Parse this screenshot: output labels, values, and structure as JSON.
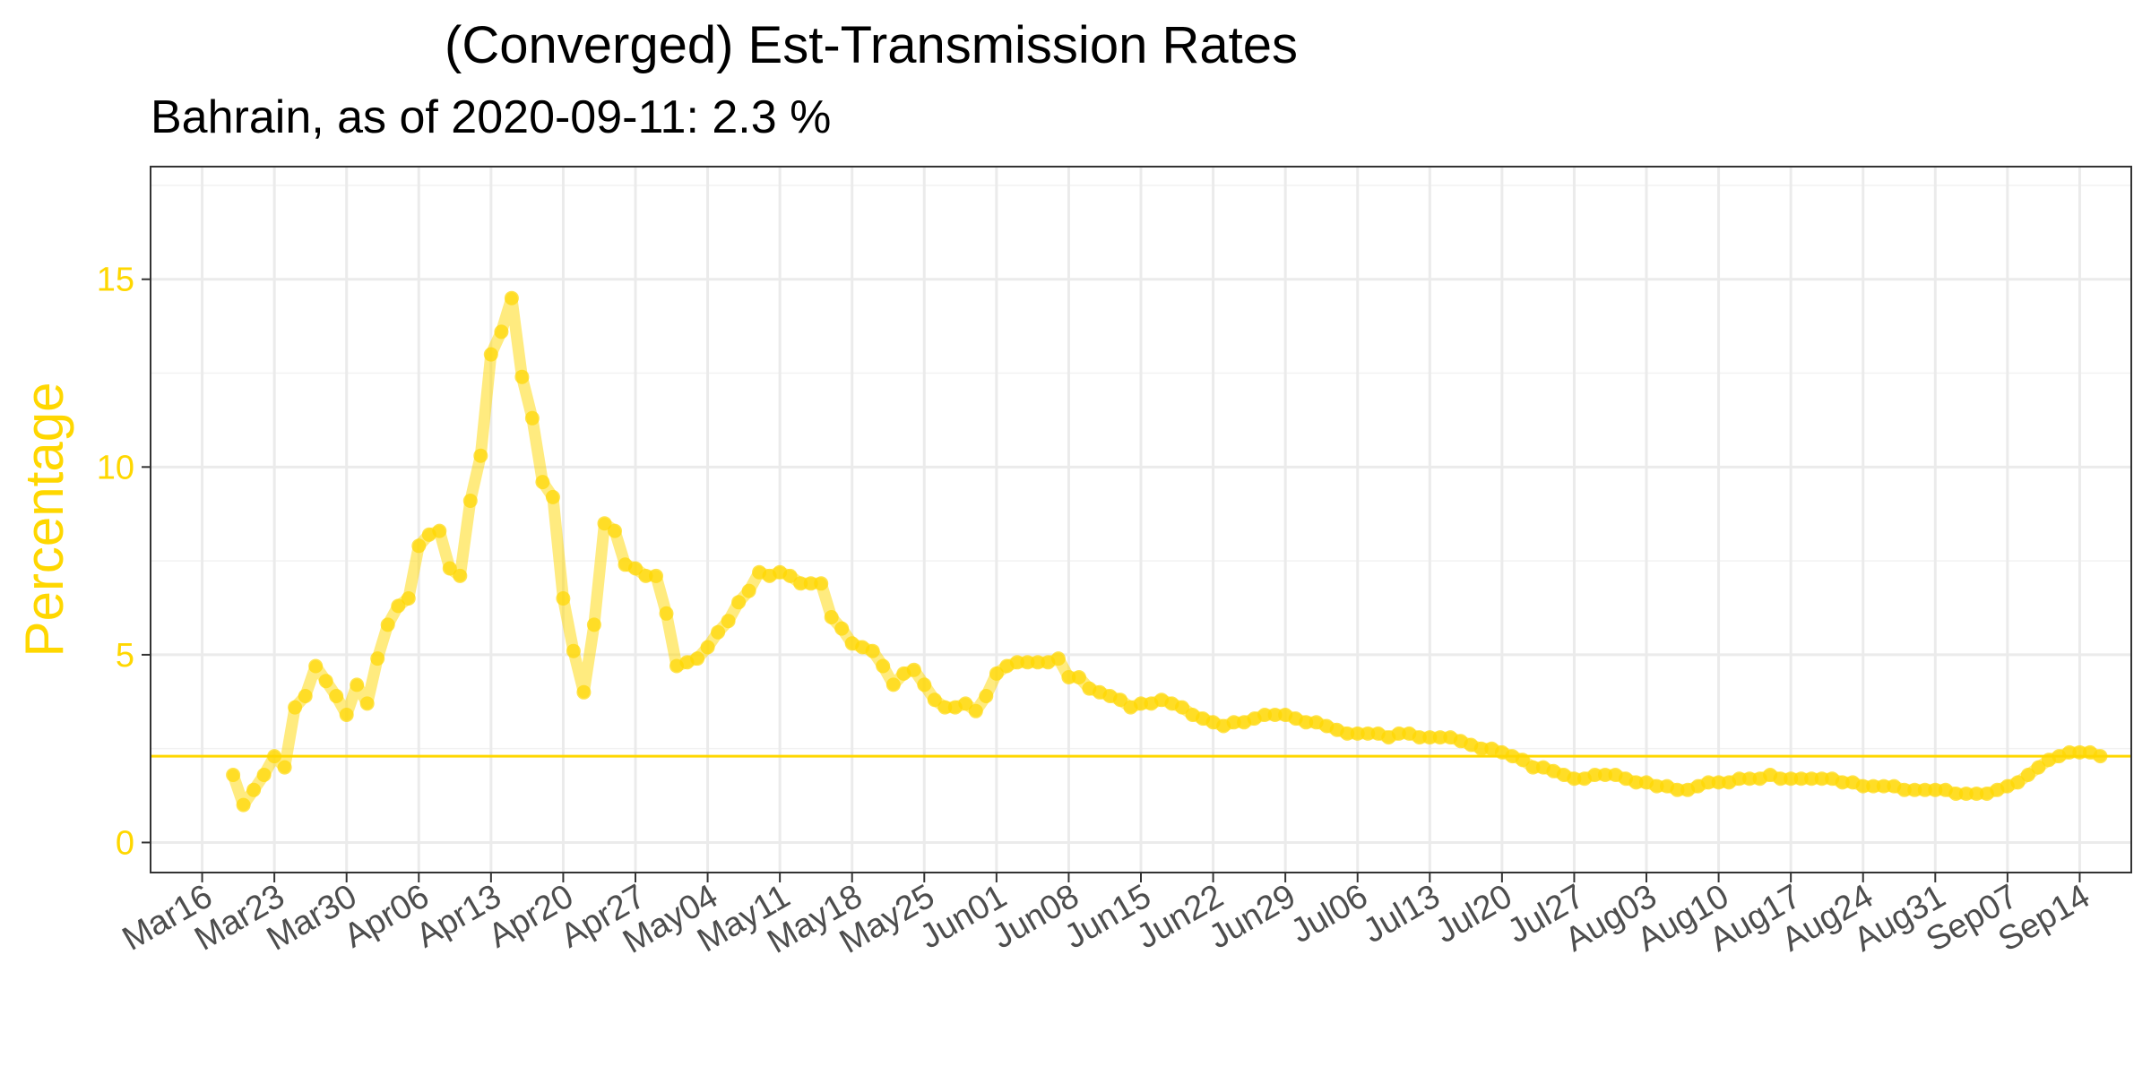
{
  "chart_data": {
    "type": "line",
    "title": "(Converged) Est-Transmission Rates",
    "subtitle": "Bahrain, as of 2020-09-11:  2.3 %",
    "ylabel": "Percentage",
    "xlabel": "",
    "ylim": [
      -0.8,
      18
    ],
    "xlim": [
      "2020-03-11",
      "2020-09-19"
    ],
    "grid": true,
    "color": "#FFD700",
    "reference_line": {
      "y": 2.3
    },
    "y_ticks": [
      "0",
      "5",
      "10",
      "15"
    ],
    "x_ticks": [
      {
        "date": "2020-03-16",
        "label": "Mar16"
      },
      {
        "date": "2020-03-23",
        "label": "Mar23"
      },
      {
        "date": "2020-03-30",
        "label": "Mar30"
      },
      {
        "date": "2020-04-06",
        "label": "Apr06"
      },
      {
        "date": "2020-04-13",
        "label": "Apr13"
      },
      {
        "date": "2020-04-20",
        "label": "Apr20"
      },
      {
        "date": "2020-04-27",
        "label": "Apr27"
      },
      {
        "date": "2020-05-04",
        "label": "May04"
      },
      {
        "date": "2020-05-11",
        "label": "May11"
      },
      {
        "date": "2020-05-18",
        "label": "May18"
      },
      {
        "date": "2020-05-25",
        "label": "May25"
      },
      {
        "date": "2020-06-01",
        "label": "Jun01"
      },
      {
        "date": "2020-06-08",
        "label": "Jun08"
      },
      {
        "date": "2020-06-15",
        "label": "Jun15"
      },
      {
        "date": "2020-06-22",
        "label": "Jun22"
      },
      {
        "date": "2020-06-29",
        "label": "Jun29"
      },
      {
        "date": "2020-07-06",
        "label": "Jul06"
      },
      {
        "date": "2020-07-13",
        "label": "Jul13"
      },
      {
        "date": "2020-07-20",
        "label": "Jul20"
      },
      {
        "date": "2020-07-27",
        "label": "Jul27"
      },
      {
        "date": "2020-08-03",
        "label": "Aug03"
      },
      {
        "date": "2020-08-10",
        "label": "Aug10"
      },
      {
        "date": "2020-08-17",
        "label": "Aug17"
      },
      {
        "date": "2020-08-24",
        "label": "Aug24"
      },
      {
        "date": "2020-08-31",
        "label": "Aug31"
      },
      {
        "date": "2020-09-07",
        "label": "Sep07"
      },
      {
        "date": "2020-09-14",
        "label": "Sep14"
      }
    ],
    "start_date": "2020-03-19",
    "values": [
      1.8,
      1.0,
      1.4,
      1.8,
      2.3,
      2.0,
      3.6,
      3.9,
      4.7,
      4.3,
      3.9,
      3.4,
      4.2,
      3.7,
      4.9,
      5.8,
      6.3,
      6.5,
      7.9,
      8.2,
      8.3,
      7.3,
      7.1,
      9.1,
      10.3,
      13.0,
      13.6,
      14.5,
      12.4,
      11.3,
      9.6,
      9.2,
      6.5,
      5.1,
      4.0,
      5.8,
      8.5,
      8.3,
      7.4,
      7.3,
      7.1,
      7.1,
      6.1,
      4.7,
      4.8,
      4.9,
      5.2,
      5.6,
      5.9,
      6.4,
      6.7,
      7.2,
      7.1,
      7.2,
      7.1,
      6.9,
      6.9,
      6.9,
      6.0,
      5.7,
      5.3,
      5.2,
      5.1,
      4.7,
      4.2,
      4.5,
      4.6,
      4.2,
      3.8,
      3.6,
      3.6,
      3.7,
      3.5,
      3.9,
      4.5,
      4.7,
      4.8,
      4.8,
      4.8,
      4.8,
      4.9,
      4.4,
      4.4,
      4.1,
      4.0,
      3.9,
      3.8,
      3.6,
      3.7,
      3.7,
      3.8,
      3.7,
      3.6,
      3.4,
      3.3,
      3.2,
      3.1,
      3.2,
      3.2,
      3.3,
      3.4,
      3.4,
      3.4,
      3.3,
      3.2,
      3.2,
      3.1,
      3.0,
      2.9,
      2.9,
      2.9,
      2.9,
      2.8,
      2.9,
      2.9,
      2.8,
      2.8,
      2.8,
      2.8,
      2.7,
      2.6,
      2.5,
      2.5,
      2.4,
      2.3,
      2.2,
      2.0,
      2.0,
      1.9,
      1.8,
      1.7,
      1.7,
      1.8,
      1.8,
      1.8,
      1.7,
      1.6,
      1.6,
      1.5,
      1.5,
      1.4,
      1.4,
      1.5,
      1.6,
      1.6,
      1.6,
      1.7,
      1.7,
      1.7,
      1.8,
      1.7,
      1.7,
      1.7,
      1.7,
      1.7,
      1.7,
      1.6,
      1.6,
      1.5,
      1.5,
      1.5,
      1.5,
      1.4,
      1.4,
      1.4,
      1.4,
      1.4,
      1.3,
      1.3,
      1.3,
      1.3,
      1.4,
      1.5,
      1.6,
      1.8,
      2.0,
      2.2,
      2.3,
      2.4,
      2.4,
      2.4,
      2.3
    ]
  }
}
